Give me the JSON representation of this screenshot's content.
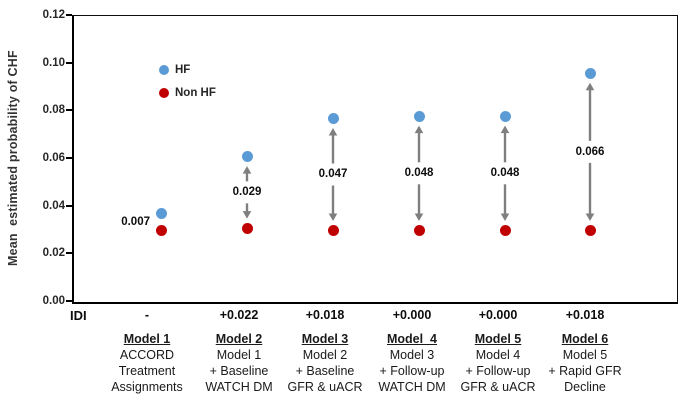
{
  "chart_data": {
    "type": "scatter",
    "title": "",
    "ylabel": "Mean  estimated probability of CHF",
    "xlabel": "",
    "ylim": [
      0,
      0.12
    ],
    "ytick_labels": [
      "0.00",
      "0.02",
      "0.04",
      "0.06",
      "0.08",
      "0.10",
      "0.12"
    ],
    "grid": false,
    "legend_position": "inside-upper-left",
    "legend": [
      {
        "name": "HF",
        "color": "#5B9BD5"
      },
      {
        "name": "Non HF",
        "color": "#C00000"
      }
    ],
    "categories": [
      "Model 1",
      "Model 2",
      "Model 3",
      "Model 4",
      "Model 5",
      "Model 6"
    ],
    "series": [
      {
        "name": "HF",
        "color": "#5B9BD5",
        "values": [
          0.037,
          0.061,
          0.077,
          0.078,
          0.078,
          0.096
        ]
      },
      {
        "name": "Non HF",
        "color": "#C00000",
        "values": [
          0.03,
          0.031,
          0.03,
          0.03,
          0.03,
          0.03
        ]
      }
    ],
    "difference_labels": [
      "0.007",
      "0.029",
      "0.047",
      "0.048",
      "0.048",
      "0.066"
    ],
    "arrow_color": "#7F7F7F",
    "idi_row": {
      "label": "IDI",
      "values": [
        "-",
        "+0.022",
        "+0.018",
        "+0.000",
        "+0.000",
        "+0.018"
      ]
    },
    "model_descriptions": [
      {
        "header": "Model 1",
        "lines": [
          "ACCORD",
          "Treatment",
          "Assignments"
        ]
      },
      {
        "header": "Model 2",
        "lines": [
          "Model 1",
          "+ Baseline",
          "WATCH DM"
        ]
      },
      {
        "header": "Model 3",
        "lines": [
          "Model 2",
          "+ Baseline",
          "GFR & uACR"
        ]
      },
      {
        "header": "Model  4",
        "lines": [
          "Model 3",
          "+ Follow-up",
          "WATCH DM"
        ]
      },
      {
        "header": "Model 5",
        "lines": [
          "Model 4",
          "+ Follow-up",
          "GFR & uACR"
        ]
      },
      {
        "header": "Model 6",
        "lines": [
          "Model 5",
          "+ Rapid GFR",
          "Decline"
        ]
      }
    ]
  }
}
